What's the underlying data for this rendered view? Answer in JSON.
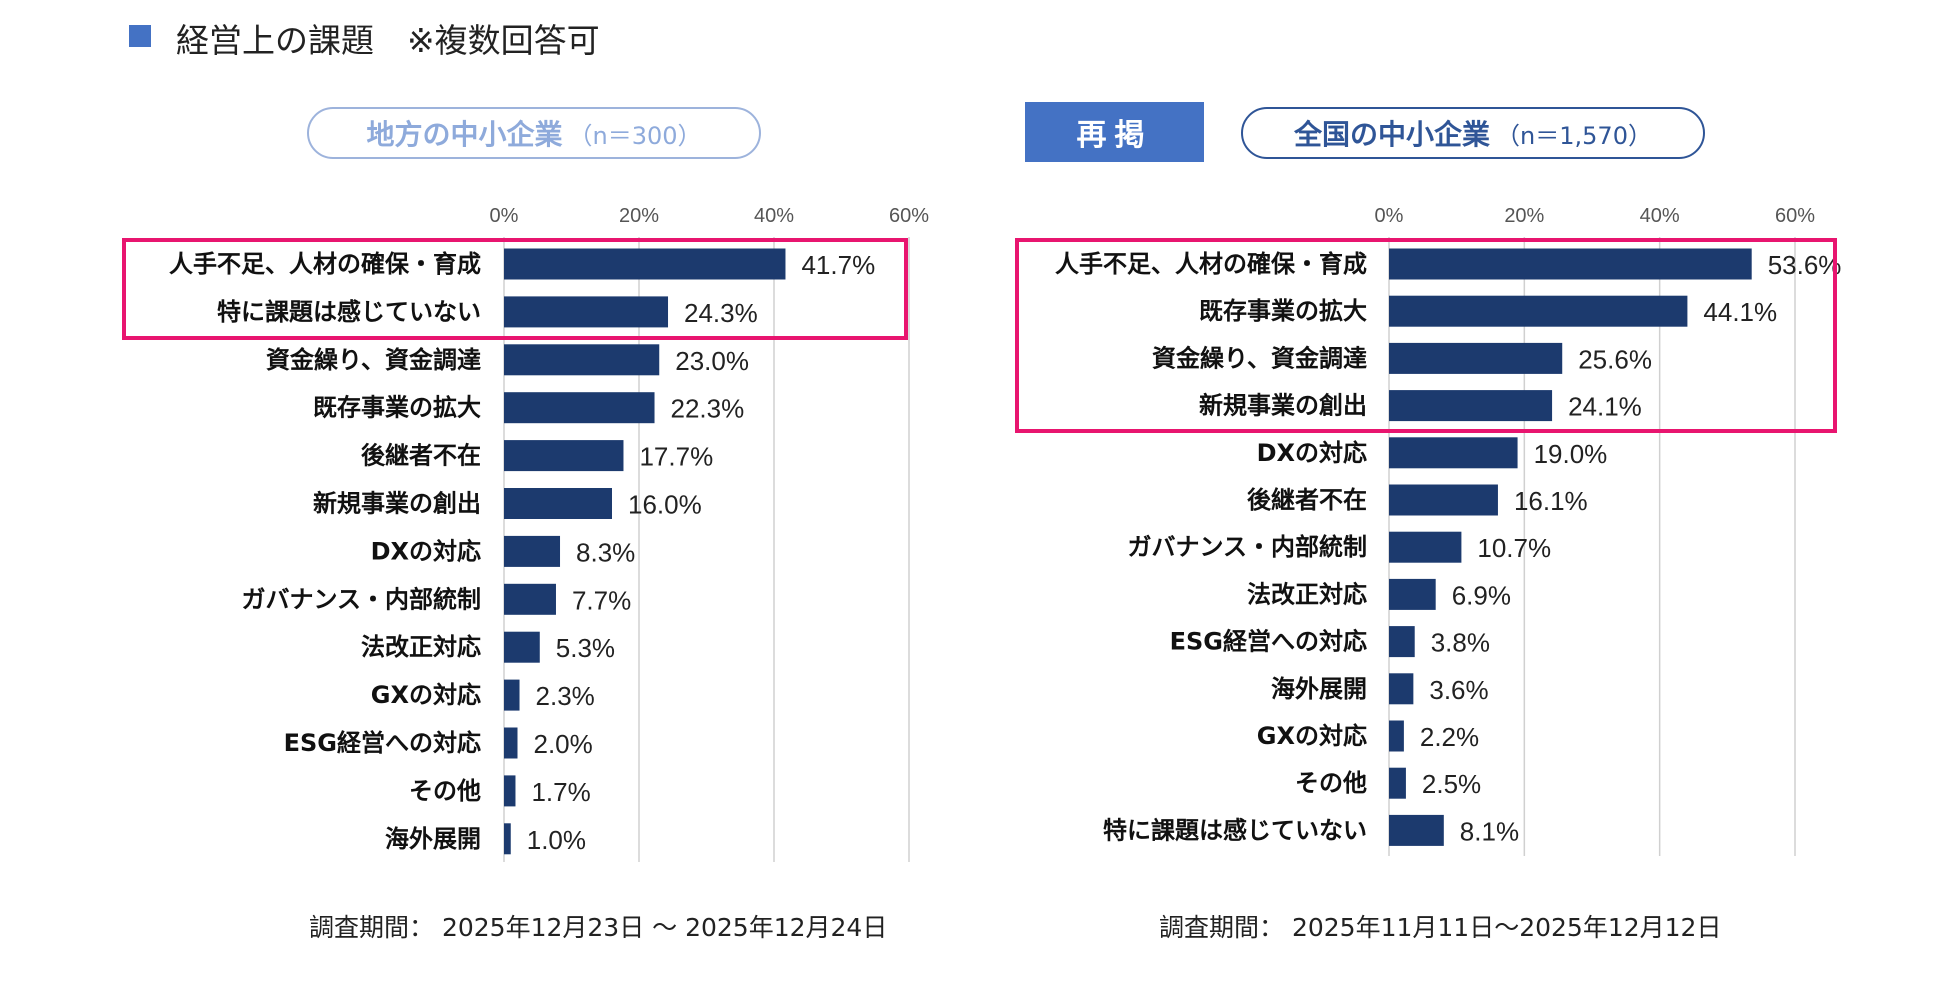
{
  "header": {
    "title": "経営上の課題　※複数回答可",
    "color": "#4472c4"
  },
  "colors": {
    "bar": "#1c3a6e",
    "highlight": "#e8156f",
    "grid": "#d0d0d0"
  },
  "chart_data": [
    {
      "type": "bar",
      "orientation": "horizontal",
      "title": "地方の中小企業",
      "subtitle": "（n＝300）",
      "xlim": [
        0,
        60
      ],
      "ticks": [
        "0%",
        "20%",
        "40%",
        "60%"
      ],
      "grid": true,
      "categories": [
        "人手不足、人材の確保・育成",
        "特に課題は感じていない",
        "資金繰り、資金調達",
        "既存事業の拡大",
        "後継者不在",
        "新規事業の創出",
        "DXの対応",
        "ガバナンス・内部統制",
        "法改正対応",
        "GXの対応",
        "ESG経営への対応",
        "その他",
        "海外展開"
      ],
      "values": [
        41.7,
        24.3,
        23.0,
        22.3,
        17.7,
        16.0,
        8.3,
        7.7,
        5.3,
        2.3,
        2.0,
        1.7,
        1.0
      ],
      "labels": [
        "41.7%",
        "24.3%",
        "23.0%",
        "22.3%",
        "17.7%",
        "16.0%",
        "8.3%",
        "7.7%",
        "5.3%",
        "2.3%",
        "2.0%",
        "1.7%",
        "1.0%"
      ],
      "highlighted_rows": 2,
      "footer": "調査期間： 2025年12月23日 ～ 2025年12月24日"
    },
    {
      "type": "bar",
      "orientation": "horizontal",
      "badge": "再掲",
      "title": "全国の中小企業",
      "subtitle": "（n＝1,570）",
      "xlim": [
        0,
        60
      ],
      "ticks": [
        "0%",
        "20%",
        "40%",
        "60%"
      ],
      "grid": true,
      "categories": [
        "人手不足、人材の確保・育成",
        "既存事業の拡大",
        "資金繰り、資金調達",
        "新規事業の創出",
        "DXの対応",
        "後継者不在",
        "ガバナンス・内部統制",
        "法改正対応",
        "ESG経営への対応",
        "海外展開",
        "GXの対応",
        "その他",
        "特に課題は感じていない"
      ],
      "values": [
        53.6,
        44.1,
        25.6,
        24.1,
        19.0,
        16.1,
        10.7,
        6.9,
        3.8,
        3.6,
        2.2,
        2.5,
        8.1
      ],
      "labels": [
        "53.6%",
        "44.1%",
        "25.6%",
        "24.1%",
        "19.0%",
        "16.1%",
        "10.7%",
        "6.9%",
        "3.8%",
        "3.6%",
        "2.2%",
        "2.5%",
        "8.1%"
      ],
      "highlighted_rows": 4,
      "footer": "調査期間： 2025年11月11日～2025年12月12日"
    }
  ]
}
